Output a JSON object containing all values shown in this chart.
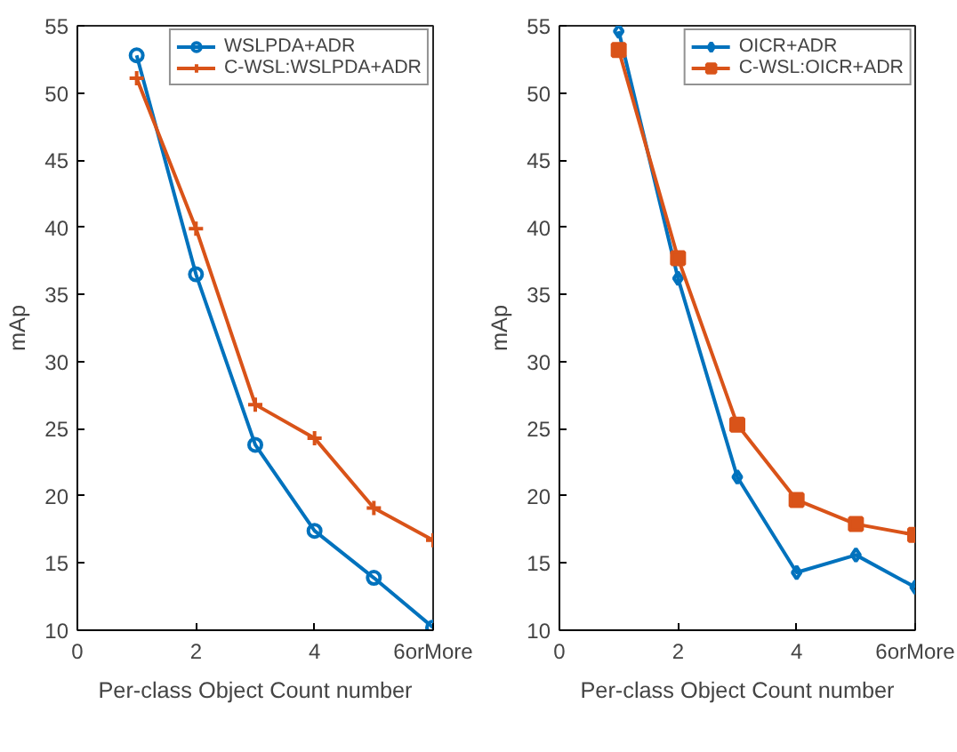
{
  "chart_data": [
    {
      "type": "line",
      "xlabel": "Per-class Object Count number",
      "ylabel": "mAp",
      "x": [
        1,
        2,
        3,
        4,
        5,
        6
      ],
      "xlim": [
        0,
        6
      ],
      "ylim": [
        10,
        55
      ],
      "xticks": [
        0,
        2,
        4,
        {
          "value": 6,
          "label": "6orMore"
        }
      ],
      "yticks": [
        10,
        15,
        20,
        25,
        30,
        35,
        40,
        45,
        50,
        55
      ],
      "legend": "top right",
      "grid": false,
      "series": [
        {
          "name": "WSLPDA+ADR",
          "color": "#0072bd",
          "marker": "circle",
          "values": [
            52.8,
            36.5,
            23.8,
            17.4,
            13.9,
            10.2
          ]
        },
        {
          "name": "C-WSL:WSLPDA+ADR",
          "color": "#d95319",
          "marker": "cross",
          "values": [
            51.1,
            39.9,
            26.8,
            24.3,
            19.1,
            16.7
          ]
        }
      ]
    },
    {
      "type": "line",
      "xlabel": "Per-class Object Count number",
      "ylabel": "mAp",
      "x": [
        1,
        2,
        3,
        4,
        5,
        6
      ],
      "xlim": [
        0,
        6
      ],
      "ylim": [
        10,
        55
      ],
      "xticks": [
        0,
        2,
        4,
        {
          "value": 6,
          "label": "6orMore"
        }
      ],
      "yticks": [
        10,
        15,
        20,
        25,
        30,
        35,
        40,
        45,
        50,
        55
      ],
      "legend": "top right",
      "grid": false,
      "series": [
        {
          "name": "OICR+ADR",
          "color": "#0072bd",
          "marker": "diamond",
          "values": [
            54.6,
            36.2,
            21.4,
            14.3,
            15.6,
            13.2
          ]
        },
        {
          "name": "C-WSL:OICR+ADR",
          "color": "#d95319",
          "marker": "square",
          "values": [
            53.2,
            37.7,
            25.3,
            19.7,
            17.9,
            17.1
          ]
        }
      ]
    }
  ]
}
